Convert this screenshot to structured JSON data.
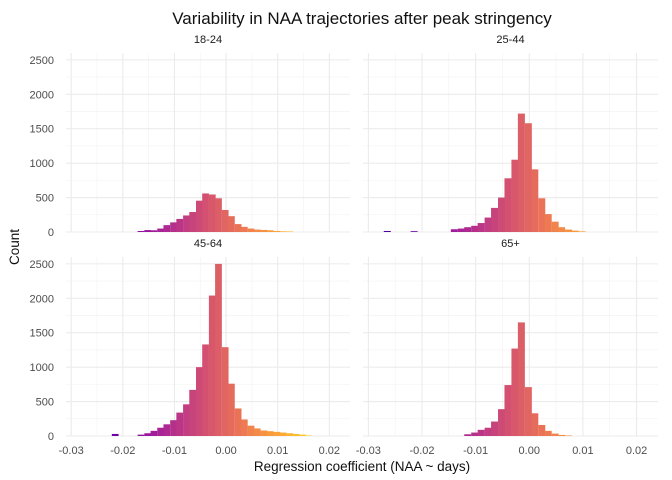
{
  "chart_data": {
    "type": "bar",
    "title": "Variability in NAA trajectories after peak stringency",
    "xlabel": "Regression coefficient (NAA ~ days)",
    "ylabel": "Count",
    "xlim": [
      -0.031,
      0.024
    ],
    "ylim": [
      0,
      2600
    ],
    "x_ticks": [
      -0.03,
      -0.02,
      -0.01,
      0.0,
      0.01,
      0.02
    ],
    "x_tick_labels": [
      "-0.03",
      "-0.02",
      "-0.01",
      "0.00",
      "0.01",
      "0.02"
    ],
    "y_ticks": [
      0,
      500,
      1000,
      1500,
      2000,
      2500
    ],
    "y_tick_labels": [
      "0",
      "500",
      "1000",
      "1500",
      "2000",
      "2500"
    ],
    "bin_width": 0.00125,
    "grid": true,
    "legend": "none",
    "color_scale": "plasma (purple to orange by x)",
    "facets": [
      {
        "label": "18-24",
        "bins": [
          [
            -0.0165,
            15
          ],
          [
            -0.0152,
            28
          ],
          [
            -0.014,
            25
          ],
          [
            -0.0127,
            50
          ],
          [
            -0.0115,
            100
          ],
          [
            -0.0102,
            140
          ],
          [
            -0.009,
            190
          ],
          [
            -0.0077,
            240
          ],
          [
            -0.0065,
            290
          ],
          [
            -0.0052,
            455
          ],
          [
            -0.004,
            560
          ],
          [
            -0.0027,
            545
          ],
          [
            -0.0015,
            490
          ],
          [
            -0.0002,
            320
          ],
          [
            0.001,
            230
          ],
          [
            0.0023,
            115
          ],
          [
            0.0035,
            75
          ],
          [
            0.0048,
            50
          ],
          [
            0.006,
            35
          ],
          [
            0.0073,
            30
          ],
          [
            0.0085,
            25
          ],
          [
            0.0098,
            15
          ],
          [
            0.011,
            10
          ],
          [
            0.0123,
            8
          ]
        ]
      },
      {
        "label": "25-44",
        "bins": [
          [
            -0.0265,
            15
          ],
          [
            -0.0215,
            12
          ],
          [
            -0.014,
            40
          ],
          [
            -0.0127,
            50
          ],
          [
            -0.0115,
            70
          ],
          [
            -0.0102,
            90
          ],
          [
            -0.009,
            130
          ],
          [
            -0.0077,
            210
          ],
          [
            -0.0065,
            350
          ],
          [
            -0.0052,
            500
          ],
          [
            -0.004,
            780
          ],
          [
            -0.0027,
            1050
          ],
          [
            -0.0015,
            1720
          ],
          [
            -0.0002,
            1580
          ],
          [
            0.001,
            910
          ],
          [
            0.0023,
            490
          ],
          [
            0.0035,
            260
          ],
          [
            0.0048,
            150
          ],
          [
            0.006,
            70
          ],
          [
            0.0073,
            35
          ],
          [
            0.0085,
            20
          ],
          [
            0.0098,
            10
          ]
        ]
      },
      {
        "label": "45-64",
        "bins": [
          [
            -0.0215,
            30
          ],
          [
            -0.0165,
            20
          ],
          [
            -0.0152,
            40
          ],
          [
            -0.014,
            75
          ],
          [
            -0.0127,
            120
          ],
          [
            -0.0115,
            170
          ],
          [
            -0.0102,
            230
          ],
          [
            -0.009,
            340
          ],
          [
            -0.0077,
            460
          ],
          [
            -0.0065,
            670
          ],
          [
            -0.0052,
            1000
          ],
          [
            -0.004,
            1330
          ],
          [
            -0.0027,
            2040
          ],
          [
            -0.0015,
            2500
          ],
          [
            -0.0002,
            1290
          ],
          [
            0.001,
            760
          ],
          [
            0.0023,
            400
          ],
          [
            0.0035,
            240
          ],
          [
            0.0048,
            150
          ],
          [
            0.006,
            110
          ],
          [
            0.0073,
            80
          ],
          [
            0.0085,
            70
          ],
          [
            0.0098,
            60
          ],
          [
            0.011,
            50
          ],
          [
            0.0123,
            40
          ],
          [
            0.0135,
            30
          ],
          [
            0.0148,
            20
          ],
          [
            0.016,
            8
          ]
        ]
      },
      {
        "label": "65+",
        "bins": [
          [
            -0.0115,
            25
          ],
          [
            -0.0102,
            50
          ],
          [
            -0.009,
            90
          ],
          [
            -0.0077,
            120
          ],
          [
            -0.0065,
            210
          ],
          [
            -0.0052,
            390
          ],
          [
            -0.004,
            740
          ],
          [
            -0.0027,
            1270
          ],
          [
            -0.0015,
            1650
          ],
          [
            -0.0002,
            710
          ],
          [
            0.001,
            330
          ],
          [
            0.0023,
            160
          ],
          [
            0.0035,
            75
          ],
          [
            0.0048,
            35
          ],
          [
            0.006,
            15
          ],
          [
            0.0073,
            8
          ]
        ]
      }
    ]
  }
}
